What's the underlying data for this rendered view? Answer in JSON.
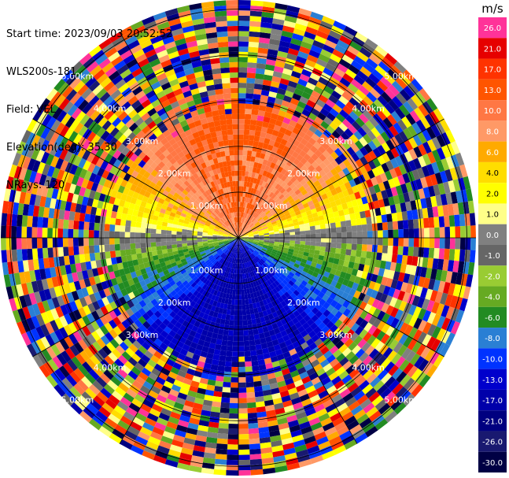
{
  "header": {
    "start_time": "Start time: 2023/09/03 20:52:52",
    "instrument": "WLS200s-181",
    "field": "Field: VEL",
    "elevation": "Elevation(deg): 35.30",
    "nrays": "NRays: 120"
  },
  "chart_data": {
    "type": "heatmap",
    "subtype": "polar-ppi",
    "field": "VEL",
    "units": "m/s",
    "nrays": 120,
    "range_rings_km": [
      1.0,
      2.0,
      3.0,
      4.0,
      5.0
    ],
    "ring_label_texts": [
      "1.00km",
      "2.00km",
      "3.00km",
      "4.00km",
      "5.00km"
    ],
    "colorbar": {
      "label": "m/s",
      "ticks": [
        "26.0",
        "21.0",
        "17.0",
        "13.0",
        "10.0",
        "8.0",
        "6.0",
        "4.0",
        "2.0",
        "1.0",
        "0.0",
        "-1.0",
        "-2.0",
        "-4.0",
        "-6.0",
        "-8.0",
        "-10.0",
        "-13.0",
        "-17.0",
        "-21.0",
        "-26.0",
        "-30.0"
      ],
      "colors": [
        "#ff3399",
        "#e60000",
        "#ff3300",
        "#ff5500",
        "#ff7744",
        "#ff9966",
        "#ffaa00",
        "#ffdd00",
        "#ffff00",
        "#ffff88",
        "#808080",
        "#666666",
        "#99cc33",
        "#66aa22",
        "#228b22",
        "#2a7fd4",
        "#0033ff",
        "#0000cc",
        "#0000aa",
        "#000080",
        "#191970",
        "#000044"
      ]
    },
    "pattern_description_by_sector": {
      "north": "positive 8-17 m/s (orange-red) within ~2.5km",
      "east_west": "near zero (yellow/grey) band",
      "south": "negative -6 to -10 m/s (green-blue) within ~2km",
      "outer": "noisy random values beyond ~3km"
    }
  }
}
